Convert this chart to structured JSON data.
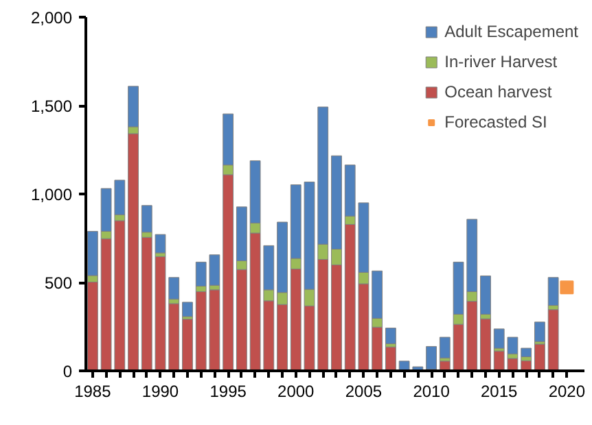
{
  "chart_data": {
    "type": "bar",
    "stacked": true,
    "legend": "top right",
    "grid": false,
    "x": [
      1985,
      1986,
      1987,
      1988,
      1989,
      1990,
      1991,
      1992,
      1993,
      1994,
      1995,
      1996,
      1997,
      1998,
      1999,
      2000,
      2001,
      2002,
      2003,
      2004,
      2005,
      2006,
      2007,
      2008,
      2009,
      2010,
      2011,
      2012,
      2013,
      2014,
      2015,
      2016,
      2017,
      2018,
      2019
    ],
    "xlim": [
      1984.5,
      2021.3
    ],
    "xticks": [
      1985,
      1990,
      1995,
      2000,
      2005,
      2010,
      2015,
      2020
    ],
    "ylim": [
      0,
      2000
    ],
    "yticks": [
      0,
      500,
      {
        "value": 1000,
        "label": "1,000"
      },
      {
        "value": 1500,
        "label": "1,500"
      },
      {
        "value": 2000,
        "label": "2,000"
      }
    ],
    "series": [
      {
        "name": "Ocean harvest",
        "color": "#c0504d",
        "values": [
          502,
          747,
          849,
          1341,
          755,
          646,
          380,
          292,
          448,
          458,
          1109,
          573,
          779,
          396,
          375,
          576,
          367,
          630,
          599,
          828,
          492,
          247,
          135,
          0,
          0,
          8,
          55,
          263,
          393,
          294,
          112,
          70,
          57,
          151,
          346
        ]
      },
      {
        "name": "In-river Harvest",
        "color": "#9bbb59",
        "values": [
          37,
          42,
          34,
          39,
          29,
          21,
          26,
          15,
          31,
          26,
          55,
          49,
          57,
          62,
          68,
          60,
          94,
          86,
          89,
          47,
          65,
          50,
          19,
          0,
          0,
          0,
          18,
          57,
          55,
          26,
          16,
          26,
          23,
          15,
          24
        ]
      },
      {
        "name": "Adult Escapement",
        "color": "#4f81bd",
        "values": [
          250,
          242,
          195,
          229,
          151,
          104,
          122,
          81,
          136,
          172,
          289,
          305,
          352,
          250,
          398,
          416,
          607,
          776,
          528,
          289,
          393,
          268,
          88,
          55,
          23,
          130,
          117,
          295,
          409,
          217,
          109,
          94,
          48,
          110,
          158
        ]
      },
      {
        "name": "Forecasted SI",
        "type": "scatter",
        "marker": "square",
        "color": "#f79646",
        "x": [
          2020
        ],
        "values": [
          472
        ]
      }
    ]
  }
}
